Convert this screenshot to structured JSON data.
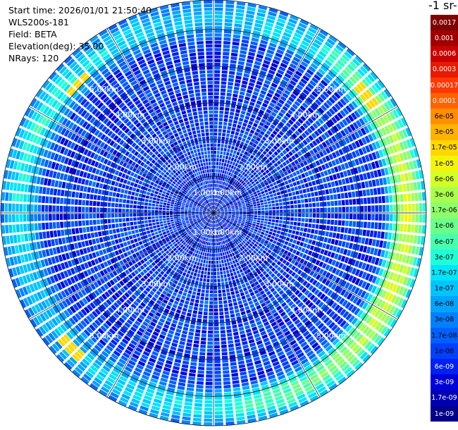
{
  "header": {
    "start_time": "Start time: 2026/01/01 21:50:40",
    "instrument": "WLS200s-181",
    "field": "Field: BETA",
    "elevation": "Elevation(deg): 35.00",
    "nrays": "NRays: 120"
  },
  "colorbar": {
    "title_fragment": "-1 sr-",
    "ticks": [
      "0.0017",
      "0.001",
      "0.0006",
      "0.0003",
      "0.00017",
      "0.0001",
      "6e-05",
      "3e-05",
      "1.7e-05",
      "1e-05",
      "6e-06",
      "3e-06",
      "1.7e-06",
      "1e-06",
      "6e-07",
      "3e-07",
      "1.7e-07",
      "1e-07",
      "6e-08",
      "3e-08",
      "1.7e-08",
      "1e-08",
      "6e-09",
      "3e-09",
      "1.7e-09",
      "1e-09"
    ],
    "colors": [
      "#7f0000",
      "#a00000",
      "#c80000",
      "#e81a00",
      "#ff3800",
      "#ff6200",
      "#ff8e00",
      "#ffb300",
      "#ffd800",
      "#f4f40a",
      "#d2ff25",
      "#aaff4d",
      "#8dff6a",
      "#6bff8c",
      "#47ffb0",
      "#1fffd8",
      "#00e4f8",
      "#00c4ff",
      "#00a4ff",
      "#0080ff",
      "#0060ff",
      "#0040ff",
      "#0020f4",
      "#0000d8",
      "#0000b0",
      "#000088"
    ],
    "dark_text_range": [
      6,
      21
    ]
  },
  "chart_data": {
    "type": "ppi",
    "field": "BETA",
    "elevation_deg": 35.0,
    "n_rays": 120,
    "range_rings_km": [
      1.0,
      2.0,
      3.0,
      4.0,
      5.0
    ],
    "ring_labels": [
      "1.00km",
      "2.00km",
      "3.00km",
      "4.00km",
      "5.00km"
    ],
    "max_range_km": 5.8,
    "background_log10_beta": -8.0,
    "enhanced_band": {
      "range_km": [
        4.9,
        5.7
      ],
      "peak_log10_beta": -5.2,
      "strength_by_azimuth": [
        {
          "az_deg": 0,
          "s": 0.35
        },
        {
          "az_deg": 30,
          "s": 0.45
        },
        {
          "az_deg": 60,
          "s": 0.85
        },
        {
          "az_deg": 90,
          "s": 1.0
        },
        {
          "az_deg": 120,
          "s": 0.95
        },
        {
          "az_deg": 150,
          "s": 0.7
        },
        {
          "az_deg": 180,
          "s": 0.5
        },
        {
          "az_deg": 210,
          "s": 0.4
        },
        {
          "az_deg": 240,
          "s": 0.35
        },
        {
          "az_deg": 270,
          "s": 0.45
        },
        {
          "az_deg": 300,
          "s": 0.55
        },
        {
          "az_deg": 330,
          "s": 0.4
        }
      ]
    },
    "hotspots": [
      {
        "az_deg": 313,
        "range_km": 5.1,
        "log10_beta": -4.7
      },
      {
        "az_deg": 226,
        "range_km": 5.3,
        "log10_beta": -4.8
      },
      {
        "az_deg": 52,
        "range_km": 5.2,
        "log10_beta": -4.9
      }
    ]
  }
}
